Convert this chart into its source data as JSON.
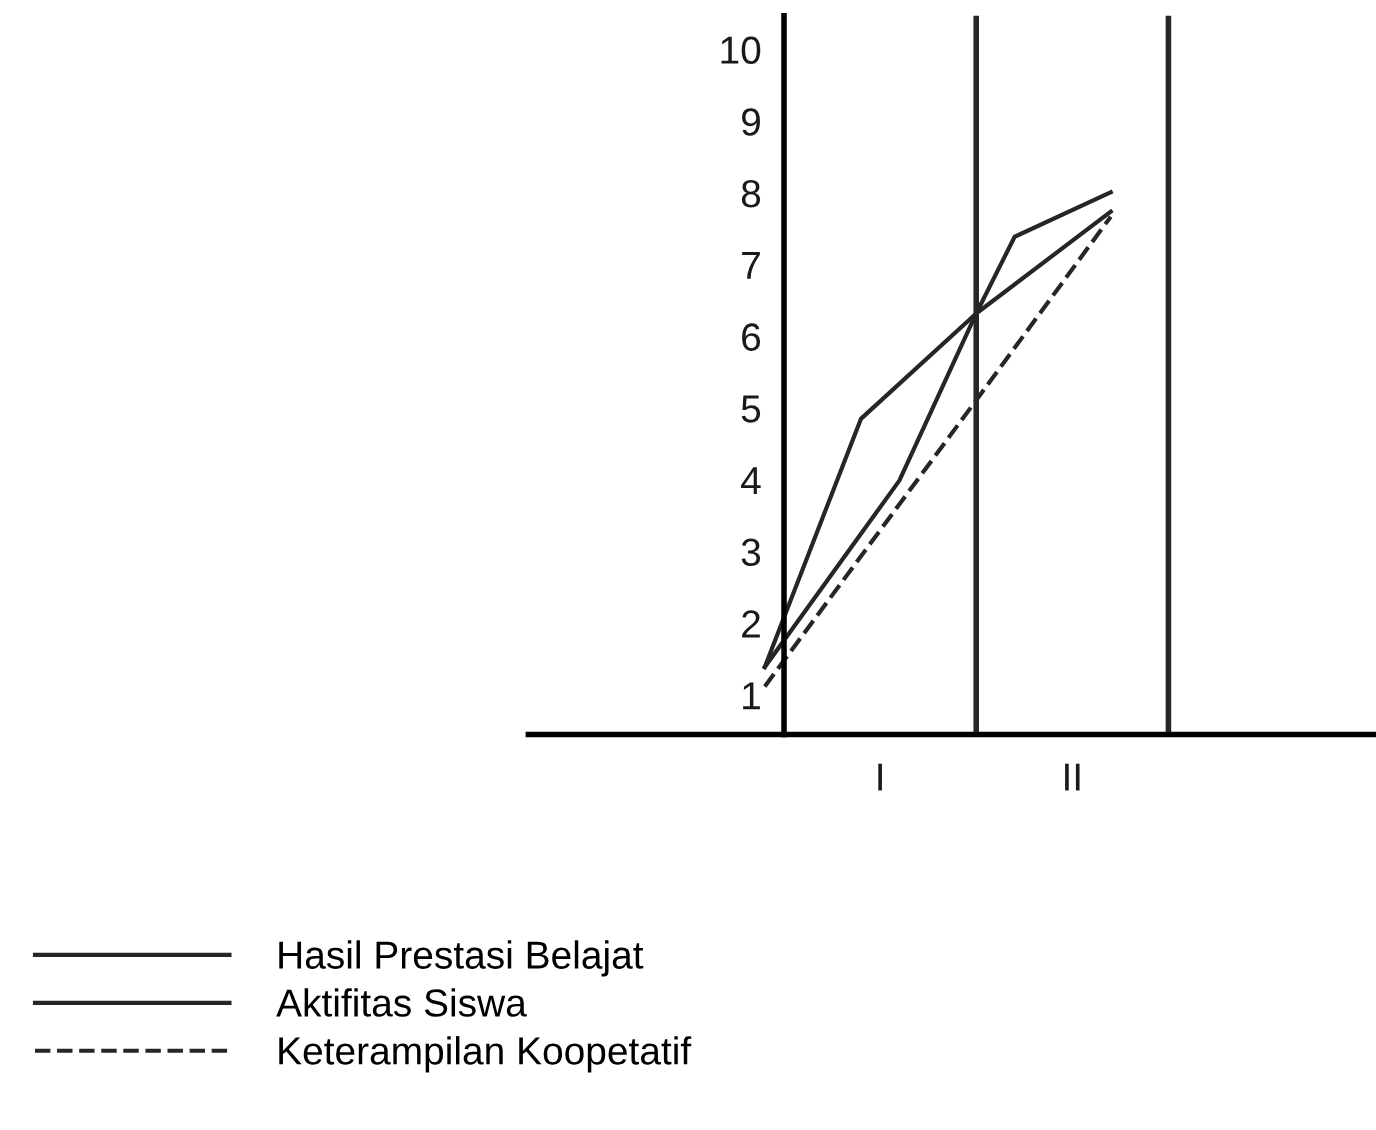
{
  "chart_data": {
    "type": "line",
    "categories": [
      null,
      null,
      null,
      null,
      null,
      null,
      "I",
      null,
      null,
      null,
      null,
      null,
      null,
      null,
      null,
      null,
      "II",
      null,
      null,
      null,
      null
    ],
    "ylim": [
      0.45,
      10.47
    ],
    "yticks": [
      1,
      2,
      3,
      4,
      5,
      6,
      7,
      8,
      9,
      10
    ],
    "grid": false,
    "legend": "bottom left",
    "marker": "none",
    "series": [
      {
        "name": "Hasil Prestasi Belajat",
        "color": "#262626",
        "line_style": "solid",
        "values": [
          1.39,
          null,
          null,
          null,
          null,
          4.85,
          null,
          null,
          null,
          null,
          null,
          6.32,
          null,
          null,
          null,
          null,
          null,
          null,
          7.74,
          null,
          null
        ]
      },
      {
        "name": "Aktifitas Siswa",
        "color": "#262626",
        "line_style": "solid",
        "values": [
          1.39,
          null,
          null,
          null,
          null,
          null,
          null,
          3.99,
          null,
          null,
          null,
          6.32,
          null,
          7.39,
          null,
          null,
          null,
          null,
          8.01,
          null,
          null
        ]
      },
      {
        "name": "Keterampilan Koopetatif",
        "color": "#262626",
        "line_style": "dashed",
        "values": [
          1.12,
          null,
          null,
          null,
          null,
          null,
          null,
          null,
          null,
          null,
          null,
          5.11,
          null,
          null,
          null,
          null,
          null,
          null,
          7.67,
          null,
          null
        ]
      }
    ]
  }
}
